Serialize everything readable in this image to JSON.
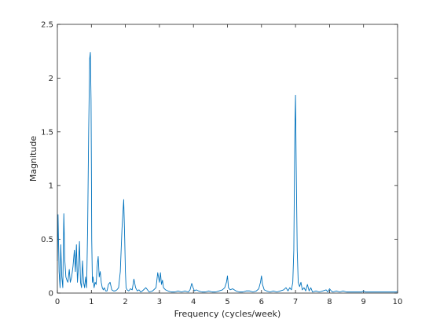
{
  "chart_data": {
    "type": "line",
    "title": "",
    "xlabel": "Frequency (cycles/week)",
    "ylabel": "Magnitude",
    "xlim": [
      0,
      10
    ],
    "ylim": [
      0,
      2.5
    ],
    "xticks": [
      0,
      1,
      2,
      3,
      4,
      5,
      6,
      7,
      8,
      9,
      10
    ],
    "xtick_labels": [
      "0",
      "1",
      "2",
      "3",
      "4",
      "5",
      "6",
      "7",
      "8",
      "9",
      "10"
    ],
    "yticks": [
      0,
      0.5,
      1,
      1.5,
      2,
      2.5
    ],
    "ytick_labels": [
      "0",
      "0.5",
      "1",
      "1.5",
      "2",
      "2.5"
    ],
    "grid": false,
    "line_color": "#0072bd",
    "series": [
      {
        "x": [
          0,
          0.02,
          0.05,
          0.08,
          0.1,
          0.13,
          0.16,
          0.19,
          0.22,
          0.25,
          0.28,
          0.31,
          0.35,
          0.38,
          0.42,
          0.46,
          0.5,
          0.53,
          0.56,
          0.59,
          0.62,
          0.65,
          0.68,
          0.71,
          0.74,
          0.77,
          0.8,
          0.83,
          0.86,
          0.89,
          0.92,
          0.95,
          0.97,
          0.99,
          1.0,
          1.01,
          1.03,
          1.05,
          1.08,
          1.11,
          1.14,
          1.17,
          1.2,
          1.23,
          1.26,
          1.29,
          1.32,
          1.35,
          1.38,
          1.42,
          1.46,
          1.5,
          1.55,
          1.6,
          1.65,
          1.7,
          1.75,
          1.8,
          1.85,
          1.9,
          1.95,
          1.98,
          2.0,
          2.02,
          2.05,
          2.1,
          2.15,
          2.2,
          2.25,
          2.3,
          2.35,
          2.4,
          2.45,
          2.5,
          2.6,
          2.7,
          2.8,
          2.9,
          2.95,
          3.0,
          3.03,
          3.06,
          3.09,
          3.12,
          3.18,
          3.25,
          3.35,
          3.45,
          3.55,
          3.65,
          3.75,
          3.85,
          3.9,
          3.95,
          3.99,
          4.03,
          4.08,
          4.15,
          4.25,
          4.35,
          4.45,
          4.55,
          4.65,
          4.75,
          4.85,
          4.92,
          4.97,
          5.0,
          5.03,
          5.08,
          5.15,
          5.25,
          5.35,
          5.45,
          5.55,
          5.65,
          5.75,
          5.85,
          5.92,
          5.97,
          6.0,
          6.03,
          6.08,
          6.15,
          6.25,
          6.35,
          6.45,
          6.55,
          6.65,
          6.72,
          6.78,
          6.83,
          6.88,
          6.92,
          6.95,
          6.98,
          7.0,
          7.02,
          7.05,
          7.08,
          7.12,
          7.16,
          7.2,
          7.25,
          7.3,
          7.35,
          7.4,
          7.45,
          7.5,
          7.6,
          7.7,
          7.8,
          7.9,
          7.95,
          8.0,
          8.05,
          8.1,
          8.2,
          8.3,
          8.4,
          8.5,
          8.6,
          8.7,
          8.8,
          8.9,
          8.95,
          9.0,
          9.05,
          9.1,
          9.2,
          9.3,
          9.4,
          9.5,
          9.6,
          9.7,
          9.8,
          9.9,
          10.0
        ],
        "y": [
          0.3,
          0.73,
          0.2,
          0.05,
          0.45,
          0.15,
          0.05,
          0.74,
          0.3,
          0.15,
          0.12,
          0.1,
          0.22,
          0.1,
          0.15,
          0.25,
          0.4,
          0.2,
          0.45,
          0.1,
          0.25,
          0.48,
          0.1,
          0.05,
          0.3,
          0.1,
          0.05,
          0.15,
          0.05,
          0.6,
          1.5,
          2.18,
          2.24,
          1.8,
          1.2,
          0.5,
          0.1,
          0.15,
          0.05,
          0.1,
          0.08,
          0.25,
          0.34,
          0.15,
          0.2,
          0.1,
          0.05,
          0.03,
          0.05,
          0.02,
          0.02,
          0.08,
          0.1,
          0.03,
          0.02,
          0.02,
          0.03,
          0.05,
          0.2,
          0.6,
          0.87,
          0.5,
          0.2,
          0.05,
          0.03,
          0.02,
          0.04,
          0.03,
          0.13,
          0.05,
          0.02,
          0.03,
          0.01,
          0.02,
          0.05,
          0.01,
          0.02,
          0.05,
          0.19,
          0.1,
          0.19,
          0.08,
          0.12,
          0.05,
          0.03,
          0.02,
          0.01,
          0.01,
          0.02,
          0.01,
          0.02,
          0.01,
          0.03,
          0.09,
          0.05,
          0.02,
          0.03,
          0.02,
          0.01,
          0.01,
          0.02,
          0.01,
          0.01,
          0.02,
          0.03,
          0.05,
          0.1,
          0.16,
          0.05,
          0.03,
          0.04,
          0.02,
          0.01,
          0.01,
          0.02,
          0.02,
          0.01,
          0.02,
          0.04,
          0.1,
          0.16,
          0.08,
          0.03,
          0.02,
          0.01,
          0.02,
          0.01,
          0.02,
          0.03,
          0.05,
          0.02,
          0.05,
          0.03,
          0.1,
          0.4,
          1.5,
          1.84,
          1.2,
          0.4,
          0.1,
          0.06,
          0.1,
          0.03,
          0.05,
          0.02,
          0.08,
          0.02,
          0.05,
          0.01,
          0.02,
          0.01,
          0.02,
          0.03,
          0.01,
          0.04,
          0.02,
          0.01,
          0.02,
          0.01,
          0.02,
          0.01,
          0.01,
          0.01,
          0.01,
          0.01,
          0.01,
          0.02,
          0.01,
          0.01,
          0.01,
          0.01,
          0.01,
          0.01,
          0.01,
          0.01,
          0.01,
          0.01,
          0.01
        ]
      }
    ]
  }
}
